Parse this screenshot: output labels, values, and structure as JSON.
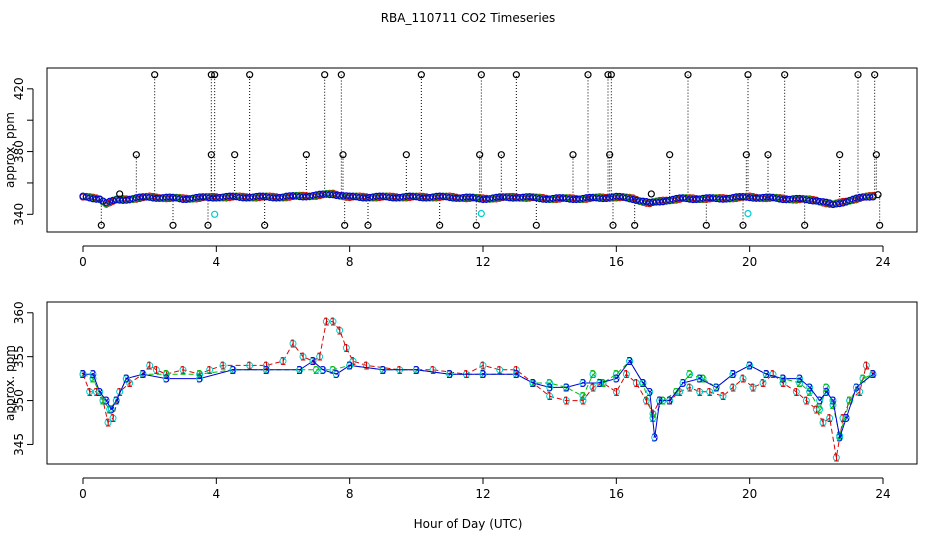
{
  "title": "RBA_110711  CO2 Timeseries",
  "xlabel": "Hour of Day (UTC)",
  "colors": {
    "axis": "#000000",
    "series1": "#dd0000",
    "series2": "#00bb00",
    "series3": "#0000dd",
    "cyan": "#00cccc",
    "black": "#000000"
  },
  "chart_data": [
    {
      "type": "scatter",
      "ylabel": "approx. ppm",
      "xlim": [
        0,
        24
      ],
      "ylim": [
        330,
        432
      ],
      "xticks": [
        0,
        4,
        8,
        12,
        16,
        20,
        24
      ],
      "yticks_labeled": [
        340,
        380,
        420
      ],
      "yticks_all": [
        340,
        360,
        380,
        400,
        420
      ],
      "baseline": [
        [
          0,
          351
        ],
        [
          0.5,
          350
        ],
        [
          0.7,
          347
        ],
        [
          1,
          349
        ],
        [
          1.5,
          350
        ],
        [
          2,
          351
        ],
        [
          3,
          350
        ],
        [
          4,
          351
        ],
        [
          5,
          351
        ],
        [
          6,
          351
        ],
        [
          7,
          352
        ],
        [
          7.5,
          353
        ],
        [
          8,
          351
        ],
        [
          9,
          351
        ],
        [
          10,
          351
        ],
        [
          11,
          351
        ],
        [
          12,
          350
        ],
        [
          13,
          351
        ],
        [
          14,
          350
        ],
        [
          15,
          350
        ],
        [
          16,
          351
        ],
        [
          16.5,
          350
        ],
        [
          17,
          347
        ],
        [
          17.5,
          349
        ],
        [
          18,
          350
        ],
        [
          19,
          350
        ],
        [
          20,
          351
        ],
        [
          21,
          350
        ],
        [
          22,
          349
        ],
        [
          22.5,
          346
        ],
        [
          23,
          349
        ],
        [
          23.5,
          351
        ],
        [
          23.8,
          352
        ]
      ],
      "spikes_top": [
        2.15,
        3.85,
        3.95,
        5.0,
        7.25,
        7.75,
        10.15,
        11.95,
        13.0,
        15.15,
        15.75,
        15.85,
        18.15,
        19.95,
        21.05,
        23.25,
        23.75
      ],
      "spikes_380": [
        1.6,
        3.85,
        4.55,
        6.7,
        7.8,
        9.7,
        11.9,
        12.55,
        14.7,
        15.8,
        17.6,
        19.9,
        20.55,
        22.7,
        23.8
      ],
      "spikes_low": [
        0.55,
        2.7,
        3.75,
        5.45,
        7.85,
        8.55,
        10.7,
        11.8,
        13.6,
        15.9,
        16.55,
        18.7,
        19.8,
        21.65,
        23.9
      ],
      "cyan_points": [
        [
          3.95,
          340
        ],
        [
          11.95,
          340.5
        ],
        [
          19.95,
          340.5
        ]
      ],
      "black_extra": [
        [
          1.1,
          353
        ],
        [
          17.05,
          353
        ],
        [
          23.85,
          352.5
        ]
      ]
    },
    {
      "type": "line",
      "ylabel": "approx. ppm",
      "xlim": [
        0,
        24
      ],
      "ylim": [
        343,
        361
      ],
      "xticks": [
        0,
        4,
        8,
        12,
        16,
        20,
        24
      ],
      "yticks": [
        345,
        350,
        355,
        360
      ],
      "series": [
        {
          "marker": "1",
          "points": [
            [
              0,
              353
            ],
            [
              0.2,
              351
            ],
            [
              0.4,
              351
            ],
            [
              0.6,
              350
            ],
            [
              0.75,
              347.5
            ],
            [
              0.9,
              348
            ],
            [
              1.1,
              351
            ],
            [
              1.4,
              352
            ],
            [
              1.8,
              353
            ],
            [
              2.0,
              354
            ],
            [
              2.2,
              353.5
            ],
            [
              2.5,
              353
            ],
            [
              3.0,
              353.5
            ],
            [
              3.5,
              353
            ],
            [
              3.8,
              353.5
            ],
            [
              4.2,
              354
            ],
            [
              5.0,
              354
            ],
            [
              5.5,
              354
            ],
            [
              6.0,
              354.5
            ],
            [
              6.3,
              356.5
            ],
            [
              6.6,
              355
            ],
            [
              6.9,
              354.5
            ],
            [
              7.1,
              355
            ],
            [
              7.3,
              359
            ],
            [
              7.5,
              359
            ],
            [
              7.7,
              358
            ],
            [
              7.9,
              356
            ],
            [
              8.1,
              354.5
            ],
            [
              8.5,
              354
            ],
            [
              9.5,
              353.5
            ],
            [
              10.5,
              353.5
            ],
            [
              11.5,
              353
            ],
            [
              12.0,
              354
            ],
            [
              12.5,
              353.5
            ],
            [
              13.0,
              353.5
            ],
            [
              13.5,
              352
            ],
            [
              14.0,
              350.5
            ],
            [
              14.5,
              350
            ],
            [
              15.0,
              350
            ],
            [
              15.3,
              351.5
            ],
            [
              15.6,
              352
            ],
            [
              16.0,
              351
            ],
            [
              16.3,
              353
            ],
            [
              16.6,
              352
            ],
            [
              16.9,
              350
            ],
            [
              17.1,
              348.5
            ],
            [
              17.3,
              350
            ],
            [
              17.6,
              350
            ],
            [
              17.9,
              351
            ],
            [
              18.2,
              351.5
            ],
            [
              18.5,
              351
            ],
            [
              18.8,
              351
            ],
            [
              19.2,
              350.5
            ],
            [
              19.5,
              351.5
            ],
            [
              19.8,
              352.5
            ],
            [
              20.1,
              351.5
            ],
            [
              20.4,
              352
            ],
            [
              20.7,
              353
            ],
            [
              21.0,
              352
            ],
            [
              21.4,
              351
            ],
            [
              21.7,
              350
            ],
            [
              22.0,
              349
            ],
            [
              22.2,
              347.5
            ],
            [
              22.4,
              348
            ],
            [
              22.6,
              343.5
            ],
            [
              22.8,
              348
            ],
            [
              23.0,
              350
            ],
            [
              23.3,
              351
            ],
            [
              23.5,
              354
            ],
            [
              23.7,
              353
            ]
          ]
        },
        {
          "marker": "2",
          "points": [
            [
              0,
              353
            ],
            [
              0.3,
              352.5
            ],
            [
              0.6,
              350
            ],
            [
              0.8,
              349
            ],
            [
              1.0,
              350
            ],
            [
              1.3,
              352.5
            ],
            [
              1.8,
              353
            ],
            [
              2.5,
              353
            ],
            [
              3.5,
              353
            ],
            [
              4.5,
              353.5
            ],
            [
              5.5,
              353.5
            ],
            [
              6.5,
              353.5
            ],
            [
              7.0,
              353.5
            ],
            [
              7.5,
              353.5
            ],
            [
              8.0,
              354
            ],
            [
              9.0,
              353.5
            ],
            [
              10.0,
              353.5
            ],
            [
              11.0,
              353
            ],
            [
              12.0,
              353
            ],
            [
              13.0,
              353
            ],
            [
              13.5,
              352
            ],
            [
              14.0,
              352
            ],
            [
              14.5,
              351.5
            ],
            [
              15.0,
              350.5
            ],
            [
              15.3,
              353
            ],
            [
              15.6,
              352
            ],
            [
              16.0,
              353
            ],
            [
              16.4,
              354.5
            ],
            [
              16.8,
              352
            ],
            [
              17.1,
              348
            ],
            [
              17.4,
              350
            ],
            [
              17.8,
              351
            ],
            [
              18.2,
              353
            ],
            [
              18.6,
              352.5
            ],
            [
              19.0,
              351.5
            ],
            [
              19.5,
              353
            ],
            [
              20.0,
              354
            ],
            [
              20.5,
              353
            ],
            [
              21.0,
              352.5
            ],
            [
              21.5,
              352
            ],
            [
              21.8,
              351
            ],
            [
              22.1,
              349
            ],
            [
              22.3,
              351.5
            ],
            [
              22.5,
              349.5
            ],
            [
              22.7,
              346
            ],
            [
              23.0,
              350
            ],
            [
              23.4,
              352.5
            ],
            [
              23.7,
              353
            ]
          ]
        },
        {
          "marker": "3",
          "points": [
            [
              0,
              353
            ],
            [
              0.3,
              353
            ],
            [
              0.5,
              351
            ],
            [
              0.7,
              350
            ],
            [
              0.85,
              349
            ],
            [
              1.0,
              350
            ],
            [
              1.3,
              352.5
            ],
            [
              1.8,
              353
            ],
            [
              2.5,
              352.5
            ],
            [
              3.5,
              352.5
            ],
            [
              4.5,
              353.5
            ],
            [
              5.5,
              353.5
            ],
            [
              6.5,
              353.5
            ],
            [
              6.9,
              354.5
            ],
            [
              7.2,
              353.5
            ],
            [
              7.6,
              353
            ],
            [
              8.0,
              354
            ],
            [
              9.0,
              353.5
            ],
            [
              10.0,
              353.5
            ],
            [
              11.0,
              353
            ],
            [
              12.0,
              353
            ],
            [
              13.0,
              353
            ],
            [
              13.5,
              352
            ],
            [
              14.0,
              351.5
            ],
            [
              14.5,
              351.5
            ],
            [
              15.0,
              352
            ],
            [
              15.5,
              352
            ],
            [
              16.0,
              352.5
            ],
            [
              16.4,
              354.5
            ],
            [
              16.8,
              352
            ],
            [
              17.0,
              351
            ],
            [
              17.15,
              345.8
            ],
            [
              17.3,
              350
            ],
            [
              17.6,
              350
            ],
            [
              18.0,
              352
            ],
            [
              18.5,
              352.5
            ],
            [
              19.0,
              351.5
            ],
            [
              19.5,
              353
            ],
            [
              20.0,
              354
            ],
            [
              20.5,
              353
            ],
            [
              21.0,
              352.5
            ],
            [
              21.5,
              352.5
            ],
            [
              21.8,
              351.5
            ],
            [
              22.1,
              350
            ],
            [
              22.3,
              351
            ],
            [
              22.5,
              350
            ],
            [
              22.7,
              345.8
            ],
            [
              22.9,
              348
            ],
            [
              23.2,
              351.5
            ],
            [
              23.7,
              353
            ]
          ]
        }
      ]
    }
  ]
}
